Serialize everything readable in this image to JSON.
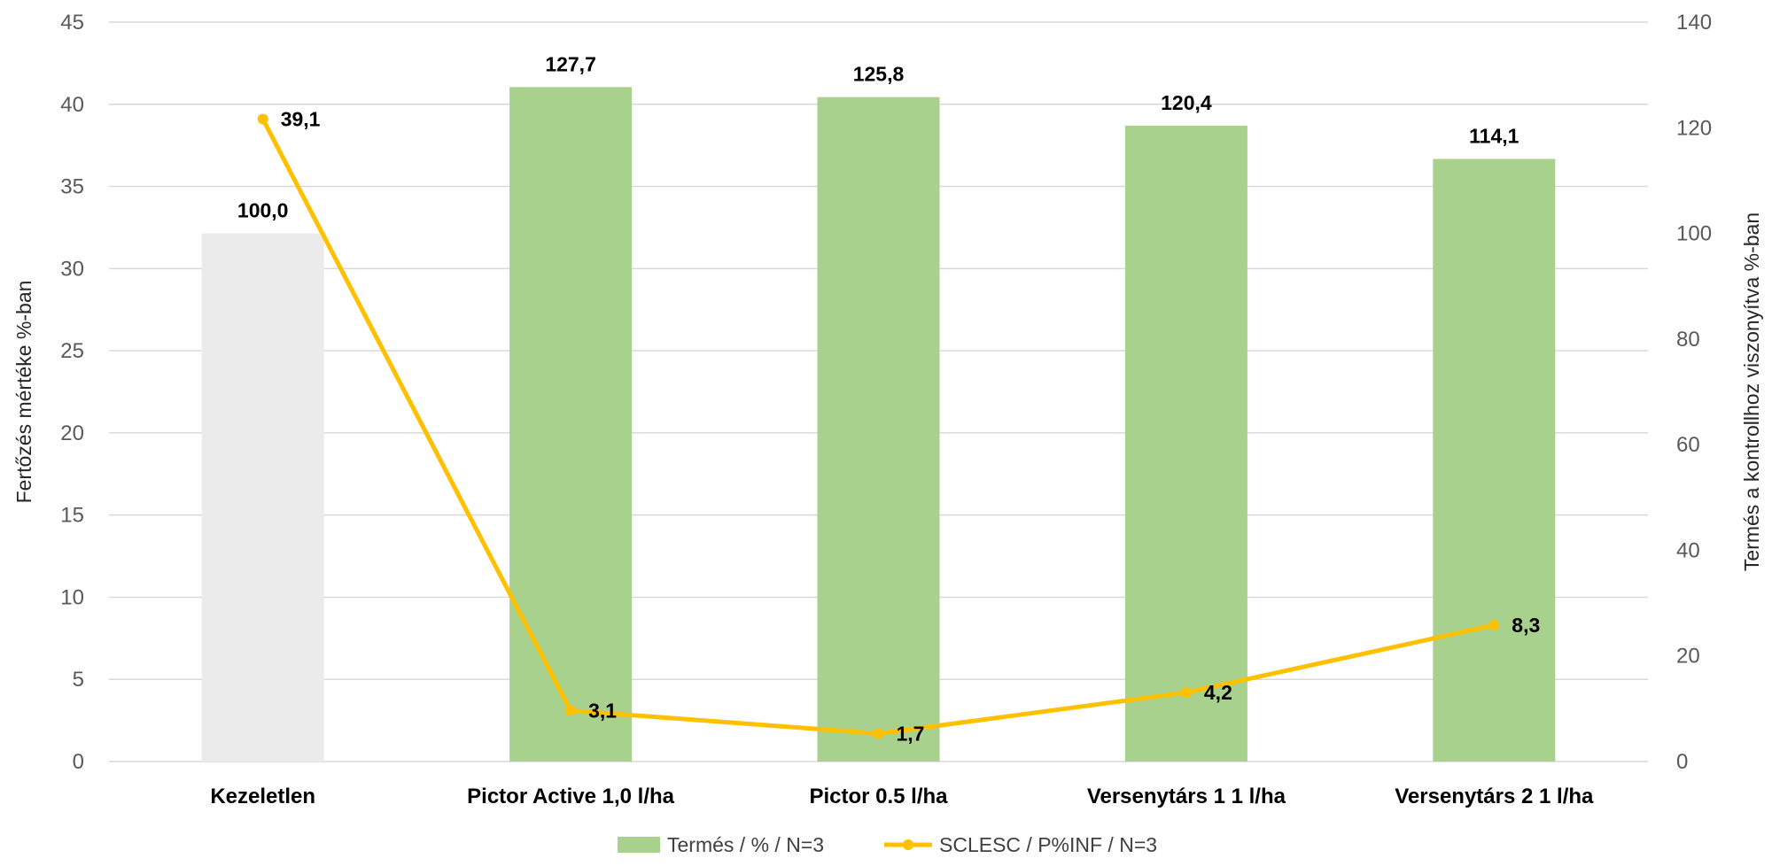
{
  "chart_data": {
    "type": "bar+line",
    "categories": [
      "Kezeletlen",
      "Pictor Active 1,0 l/ha",
      "Pictor 0.5 l/ha",
      "Versenytárs 1 1 l/ha",
      "Versenytárs 2 1 l/ha"
    ],
    "series": [
      {
        "name": "Termés / % / N=3",
        "type": "bar",
        "axis": "right",
        "values": [
          100.0,
          127.7,
          125.8,
          120.4,
          114.1
        ],
        "labels": [
          "100,0",
          "127,7",
          "125,8",
          "120,4",
          "114,1"
        ],
        "colors": [
          "#ebebeb",
          "#a9d18e",
          "#a9d18e",
          "#a9d18e",
          "#a9d18e"
        ]
      },
      {
        "name": "SCLESC / P%INF / N=3",
        "type": "line",
        "axis": "left",
        "values": [
          39.1,
          3.1,
          1.7,
          4.2,
          8.3
        ],
        "labels": [
          "39,1",
          "3,1",
          "1,7",
          "4,2",
          "8,3"
        ],
        "color": "#ffc000"
      }
    ],
    "ylabel": "Fertőzés mértéke %-ban",
    "y2label": "Termés a kontrollhoz viszonyítva %-ban",
    "ylim": [
      0,
      45
    ],
    "y2lim": [
      0,
      140
    ],
    "yticks": [
      "0",
      "5",
      "10",
      "15",
      "20",
      "25",
      "30",
      "35",
      "40",
      "45"
    ],
    "y2ticks": [
      "0",
      "20",
      "40",
      "60",
      "80",
      "100",
      "120",
      "140"
    ],
    "grid": true,
    "legend": "bottom"
  }
}
